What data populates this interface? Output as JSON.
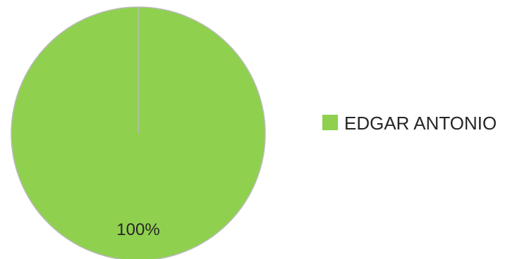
{
  "chart_data": {
    "type": "pie",
    "categories": [
      "EDGAR ANTONIO"
    ],
    "values": [
      1
    ],
    "data_labels": [
      "100%"
    ],
    "colors": [
      "#8fd14f"
    ],
    "legend": {
      "position": "right",
      "entries": [
        "EDGAR ANTONIO"
      ]
    }
  }
}
